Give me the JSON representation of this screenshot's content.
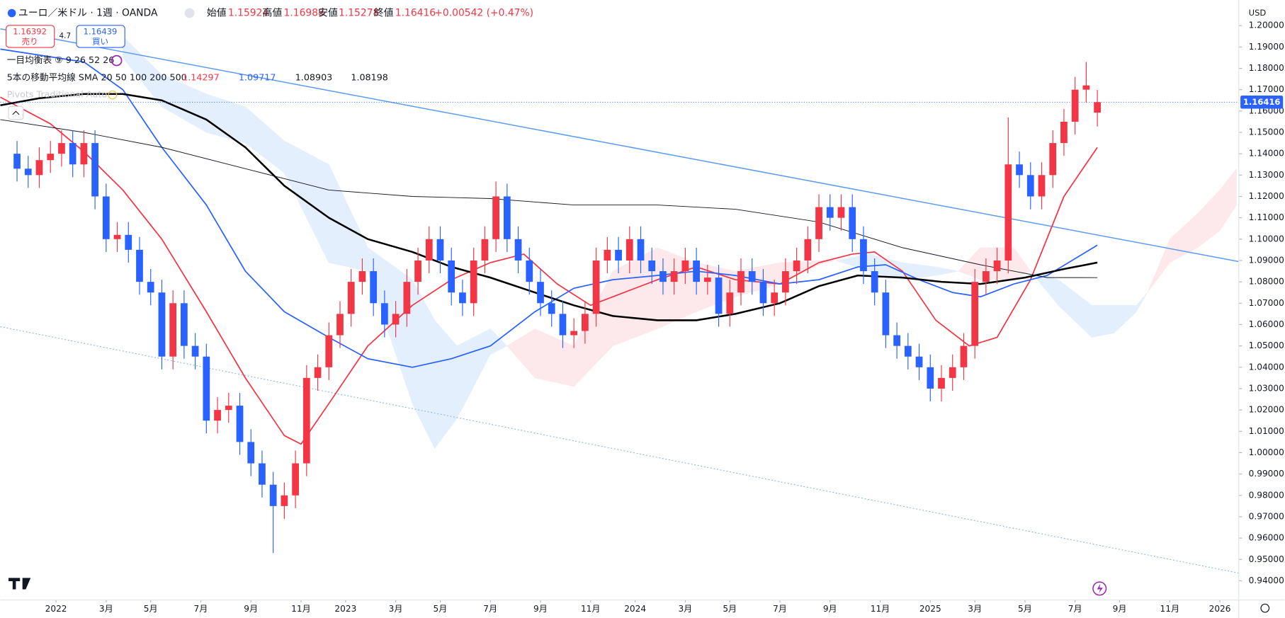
{
  "chart_data": {
    "type": "candlestick",
    "title": "ユーロ／米ドル · 1週 · OANDA",
    "ohlc_labels": [
      "始値",
      "高値",
      "安値",
      "終値"
    ],
    "change": "+0.00542 (+0.47%)",
    "sell_price": "1.16392",
    "sell_label": "売り",
    "spread": "4.7",
    "buy_price": "1.16439",
    "buy_label": "買い",
    "ichimoku_label": "一目均衡表 ⑨ 9 26 52 26",
    "ma_label": "5本の移動平均線 SMA 20 50 100 200 500",
    "pivots_label": "Pivots Traditional Auto",
    "currency": "USD",
    "up_color": "#f23645",
    "down_color": "#2962ff",
    "x": [
      -7,
      -5,
      -3,
      -1,
      1,
      3,
      5,
      7,
      9,
      11,
      13,
      15,
      17,
      19,
      21,
      23,
      25,
      27,
      29,
      31,
      33,
      35,
      37,
      39,
      41,
      43,
      45,
      47,
      49,
      51,
      53,
      55,
      57,
      59,
      61,
      63,
      65,
      67,
      69,
      71,
      73,
      75,
      77,
      79,
      81,
      83,
      85,
      87,
      89,
      91,
      93,
      95,
      97,
      99,
      101,
      103,
      105,
      107,
      109,
      111,
      113,
      115,
      117,
      119,
      121,
      123,
      125,
      127,
      129,
      131,
      133,
      135,
      137,
      139,
      141,
      143,
      145,
      147,
      149,
      151,
      153,
      155,
      157,
      159,
      161,
      163,
      165,
      167,
      169,
      171,
      173,
      175,
      177,
      179,
      181,
      183,
      185,
      187
    ],
    "open": [
      1.14,
      1.133,
      1.13,
      1.137,
      1.14,
      1.145,
      1.135,
      1.145,
      1.12,
      1.1,
      1.102,
      1.095,
      1.08,
      1.075,
      1.045,
      1.07,
      1.05,
      1.045,
      1.015,
      1.02,
      1.022,
      1.005,
      0.995,
      0.985,
      0.975,
      0.98,
      0.995,
      1.035,
      1.04,
      1.055,
      1.065,
      1.08,
      1.085,
      1.07,
      1.06,
      1.065,
      1.08,
      1.09,
      1.1,
      1.09,
      1.075,
      1.07,
      1.09,
      1.1,
      1.12,
      1.1,
      1.09,
      1.08,
      1.07,
      1.065,
      1.055,
      1.057,
      1.065,
      1.09,
      1.095,
      1.09,
      1.1,
      1.09,
      1.085,
      1.08,
      1.085,
      1.09,
      1.08,
      1.082,
      1.065,
      1.075,
      1.085,
      1.08,
      1.07,
      1.075,
      1.085,
      1.09,
      1.1,
      1.115,
      1.11,
      1.115,
      1.1,
      1.085,
      1.075,
      1.055,
      1.05,
      1.045,
      1.04,
      1.03,
      1.035,
      1.04,
      1.05,
      1.08,
      1.085,
      1.09,
      1.135,
      1.13,
      1.12,
      1.13,
      1.145,
      1.155,
      1.17,
      1.15924
    ],
    "high": [
      1.146,
      1.139,
      1.143,
      1.146,
      1.151,
      1.151,
      1.151,
      1.151,
      1.126,
      1.108,
      1.108,
      1.101,
      1.086,
      1.081,
      1.076,
      1.076,
      1.056,
      1.051,
      1.026,
      1.028,
      1.028,
      1.011,
      1.001,
      0.991,
      0.986,
      1.001,
      1.041,
      1.046,
      1.061,
      1.071,
      1.086,
      1.091,
      1.091,
      1.076,
      1.071,
      1.086,
      1.096,
      1.106,
      1.106,
      1.096,
      1.081,
      1.096,
      1.106,
      1.127,
      1.126,
      1.106,
      1.096,
      1.086,
      1.076,
      1.071,
      1.063,
      1.071,
      1.096,
      1.101,
      1.101,
      1.106,
      1.106,
      1.096,
      1.091,
      1.091,
      1.096,
      1.096,
      1.088,
      1.088,
      1.081,
      1.091,
      1.091,
      1.086,
      1.081,
      1.091,
      1.096,
      1.106,
      1.121,
      1.121,
      1.121,
      1.121,
      1.106,
      1.091,
      1.081,
      1.061,
      1.056,
      1.051,
      1.046,
      1.041,
      1.046,
      1.056,
      1.086,
      1.091,
      1.096,
      1.157,
      1.141,
      1.136,
      1.136,
      1.151,
      1.161,
      1.176,
      1.183,
      1.16988
    ],
    "low": [
      1.127,
      1.124,
      1.124,
      1.131,
      1.134,
      1.129,
      1.129,
      1.114,
      1.094,
      1.094,
      1.089,
      1.074,
      1.069,
      1.039,
      1.039,
      1.044,
      1.039,
      1.009,
      1.009,
      1.014,
      0.999,
      0.989,
      0.979,
      0.953,
      0.969,
      0.974,
      0.989,
      1.029,
      1.034,
      1.049,
      1.059,
      1.074,
      1.064,
      1.054,
      1.054,
      1.059,
      1.074,
      1.084,
      1.084,
      1.069,
      1.064,
      1.064,
      1.084,
      1.094,
      1.094,
      1.084,
      1.074,
      1.064,
      1.059,
      1.049,
      1.049,
      1.051,
      1.059,
      1.084,
      1.084,
      1.084,
      1.084,
      1.079,
      1.074,
      1.074,
      1.079,
      1.074,
      1.074,
      1.059,
      1.059,
      1.069,
      1.074,
      1.064,
      1.064,
      1.069,
      1.079,
      1.084,
      1.094,
      1.104,
      1.104,
      1.094,
      1.079,
      1.069,
      1.049,
      1.044,
      1.039,
      1.034,
      1.024,
      1.024,
      1.029,
      1.034,
      1.044,
      1.074,
      1.079,
      1.084,
      1.124,
      1.114,
      1.114,
      1.124,
      1.139,
      1.149,
      1.164,
      1.15278
    ],
    "close": [
      1.133,
      1.13,
      1.137,
      1.14,
      1.145,
      1.135,
      1.145,
      1.12,
      1.1,
      1.102,
      1.095,
      1.08,
      1.075,
      1.045,
      1.07,
      1.05,
      1.045,
      1.015,
      1.02,
      1.022,
      1.005,
      0.995,
      0.985,
      0.975,
      0.98,
      0.995,
      1.035,
      1.04,
      1.055,
      1.065,
      1.08,
      1.085,
      1.07,
      1.06,
      1.065,
      1.08,
      1.09,
      1.1,
      1.09,
      1.075,
      1.07,
      1.09,
      1.1,
      1.12,
      1.1,
      1.09,
      1.08,
      1.07,
      1.065,
      1.055,
      1.057,
      1.065,
      1.09,
      1.095,
      1.09,
      1.1,
      1.09,
      1.085,
      1.08,
      1.085,
      1.09,
      1.08,
      1.082,
      1.065,
      1.075,
      1.085,
      1.08,
      1.07,
      1.075,
      1.085,
      1.09,
      1.1,
      1.115,
      1.11,
      1.115,
      1.1,
      1.085,
      1.075,
      1.055,
      1.05,
      1.045,
      1.04,
      1.03,
      1.035,
      1.04,
      1.05,
      1.08,
      1.085,
      1.09,
      1.135,
      1.13,
      1.12,
      1.13,
      1.145,
      1.155,
      1.17,
      1.172,
      1.16416
    ],
    "series": [
      {
        "color": "#f23645",
        "width": 1.5,
        "x": [
          -10,
          -1,
          5,
          12,
          19,
          27,
          34,
          41,
          44,
          49,
          56,
          64,
          71,
          78,
          84,
          90,
          96,
          102,
          108,
          115,
          122,
          130,
          137,
          143,
          147,
          152,
          158,
          164,
          169,
          175,
          181,
          187
        ],
        "values": [
          1.1665,
          1.154,
          1.141,
          1.123,
          1.1,
          1.066,
          1.035,
          1.008,
          1.004,
          1.023,
          1.05,
          1.069,
          1.081,
          1.089,
          1.093,
          1.079,
          1.069,
          1.075,
          1.081,
          1.087,
          1.081,
          1.079,
          1.089,
          1.093,
          1.094,
          1.085,
          1.062,
          1.05,
          1.054,
          1.081,
          1.12,
          1.14297
        ]
      },
      {
        "color": "#2962ff",
        "width": 1.5,
        "x": [
          -10,
          5,
          12,
          19,
          27,
          34,
          41,
          49,
          56,
          64,
          71,
          78,
          86,
          93,
          100,
          108,
          115,
          122,
          130,
          137,
          144,
          149,
          155,
          161,
          166,
          172,
          178,
          187
        ],
        "values": [
          1.189,
          1.183,
          1.17,
          1.143,
          1.116,
          1.085,
          1.066,
          1.054,
          1.044,
          1.04,
          1.044,
          1.05,
          1.066,
          1.077,
          1.081,
          1.083,
          1.085,
          1.083,
          1.079,
          1.081,
          1.087,
          1.088,
          1.081,
          1.075,
          1.073,
          1.079,
          1.083,
          1.09717
        ]
      },
      {
        "color": "#000000",
        "width": 2.2,
        "x": [
          -10,
          -3,
          5,
          12,
          19,
          27,
          34,
          41,
          49,
          56,
          64,
          71,
          78,
          86,
          93,
          100,
          108,
          115,
          122,
          130,
          137,
          144,
          152,
          159,
          166,
          174,
          181,
          187
        ],
        "values": [
          1.1627,
          1.166,
          1.168,
          1.168,
          1.165,
          1.156,
          1.143,
          1.125,
          1.11,
          1.1,
          1.094,
          1.087,
          1.082,
          1.075,
          1.069,
          1.064,
          1.062,
          1.062,
          1.065,
          1.07,
          1.078,
          1.083,
          1.082,
          1.08,
          1.079,
          1.082,
          1.086,
          1.08903
        ]
      },
      {
        "color": "#131722",
        "width": 0.8,
        "x": [
          -10,
          5,
          19,
          34,
          49,
          64,
          78,
          93,
          108,
          122,
          137,
          152,
          166,
          178,
          187
        ],
        "values": [
          1.156,
          1.15,
          1.143,
          1.133,
          1.123,
          1.12,
          1.119,
          1.116,
          1.116,
          1.114,
          1.108,
          1.096,
          1.088,
          1.082,
          1.08198
        ]
      }
    ],
    "cloud": {
      "up_color": "#e4effd",
      "down_color": "#fde9eb",
      "x": [
        12,
        19,
        27,
        34,
        41,
        49,
        56,
        64,
        68,
        72,
        78,
        81,
        86,
        93,
        100,
        108,
        115,
        122,
        130,
        137,
        140,
        146,
        152,
        158,
        162,
        166,
        172,
        175,
        180,
        186,
        190,
        194,
        196,
        200,
        205,
        209,
        212
      ],
      "span_a": [
        1.195,
        1.177,
        1.168,
        1.162,
        1.146,
        1.135,
        1.096,
        1.081,
        1.062,
        1.05,
        1.058,
        1.05,
        1.035,
        1.031,
        1.05,
        1.058,
        1.066,
        1.073,
        1.079,
        1.088,
        1.09,
        1.093,
        1.089,
        1.087,
        1.085,
        1.081,
        1.081,
        1.085,
        1.081,
        1.069,
        1.069,
        1.069,
        1.075,
        1.089,
        1.096,
        1.104,
        1.116
      ],
      "span_b": [
        1.185,
        1.162,
        1.15,
        1.145,
        1.131,
        1.089,
        1.085,
        1.023,
        1.002,
        1.016,
        1.046,
        1.05,
        1.058,
        1.05,
        1.085,
        1.096,
        1.089,
        1.085,
        1.089,
        1.09,
        1.09,
        1.085,
        1.081,
        1.083,
        1.085,
        1.096,
        1.096,
        1.085,
        1.069,
        1.054,
        1.056,
        1.066,
        1.075,
        1.1,
        1.112,
        1.123,
        1.133
      ]
    },
    "trendlines": [
      {
        "color": "#5b9bf0",
        "dashed": false,
        "x": [
          -10,
          212.4
        ],
        "y": [
          1.1985,
          1.0895
        ]
      },
      {
        "color": "#7fb0f2",
        "dashed": true,
        "x": [
          -10,
          212.4
        ],
        "y": [
          1.059,
          0.9436
        ]
      }
    ],
    "xlim": [
      -10,
      212.4
    ],
    "ylim": [
      0.931,
      1.212
    ],
    "xticks": [
      {
        "value": 0,
        "label": "2022"
      },
      {
        "value": 9,
        "label": "3月"
      },
      {
        "value": 17,
        "label": "5月"
      },
      {
        "value": 26,
        "label": "7月"
      },
      {
        "value": 35,
        "label": "9月"
      },
      {
        "value": 44,
        "label": "11月"
      },
      {
        "value": 52,
        "label": "2023"
      },
      {
        "value": 61,
        "label": "3月"
      },
      {
        "value": 69,
        "label": "5月"
      },
      {
        "value": 78,
        "label": "7月"
      },
      {
        "value": 87,
        "label": "9月"
      },
      {
        "value": 96,
        "label": "11月"
      },
      {
        "value": 104,
        "label": "2024"
      },
      {
        "value": 113,
        "label": "3月"
      },
      {
        "value": 121,
        "label": "5月"
      },
      {
        "value": 130,
        "label": "7月"
      },
      {
        "value": 139,
        "label": "9月"
      },
      {
        "value": 148,
        "label": "11月"
      },
      {
        "value": 157,
        "label": "2025"
      },
      {
        "value": 165,
        "label": "3月"
      },
      {
        "value": 174,
        "label": "5月"
      },
      {
        "value": 183,
        "label": "7月"
      },
      {
        "value": 191,
        "label": "9月"
      },
      {
        "value": 200,
        "label": "11月"
      },
      {
        "value": 209,
        "label": "2026"
      }
    ],
    "yticks": [
      {
        "value": 0.94,
        "label": "0.94000"
      },
      {
        "value": 0.95,
        "label": "0.95000"
      },
      {
        "value": 0.96,
        "label": "0.96000"
      },
      {
        "value": 0.97,
        "label": "0.97000"
      },
      {
        "value": 0.98,
        "label": "0.98000"
      },
      {
        "value": 0.99,
        "label": "0.99000"
      },
      {
        "value": 1,
        "label": "1.00000"
      },
      {
        "value": 1.01,
        "label": "1.01000"
      },
      {
        "value": 1.02,
        "label": "1.02000"
      },
      {
        "value": 1.03,
        "label": "1.03000"
      },
      {
        "value": 1.04,
        "label": "1.04000"
      },
      {
        "value": 1.05,
        "label": "1.05000"
      },
      {
        "value": 1.06,
        "label": "1.06000"
      },
      {
        "value": 1.07,
        "label": "1.07000"
      },
      {
        "value": 1.08,
        "label": "1.08000"
      },
      {
        "value": 1.09,
        "label": "1.09000"
      },
      {
        "value": 1.1,
        "label": "1.10000"
      },
      {
        "value": 1.11,
        "label": "1.11000"
      },
      {
        "value": 1.12,
        "label": "1.12000"
      },
      {
        "value": 1.13,
        "label": "1.13000"
      },
      {
        "value": 1.14,
        "label": "1.14000"
      },
      {
        "value": 1.15,
        "label": "1.15000"
      },
      {
        "value": 1.16,
        "label": "1.16000"
      },
      {
        "value": 1.17,
        "label": "1.17000"
      },
      {
        "value": 1.18,
        "label": "1.18000"
      },
      {
        "value": 1.19,
        "label": "1.19000"
      },
      {
        "value": 1.2,
        "label": "1.20000"
      }
    ]
  }
}
